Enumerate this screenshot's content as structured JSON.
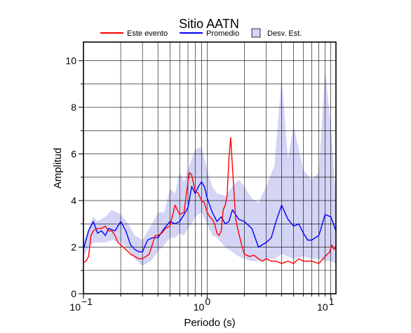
{
  "chart_data": {
    "type": "line",
    "title": "Sitio AATN",
    "xlabel": "Periodo (s)",
    "ylabel": "Amplitud",
    "xscale": "log",
    "xlim": [
      0.1,
      11
    ],
    "ylim": [
      0,
      10.8
    ],
    "x_tick_labels": [
      {
        "value": 0.1,
        "base": "10",
        "exp": "−1"
      },
      {
        "value": 1,
        "base": "10",
        "exp": "0"
      },
      {
        "value": 10,
        "base": "10",
        "exp": "1"
      }
    ],
    "y_ticks": [
      0,
      2,
      4,
      6,
      8,
      10
    ],
    "y_tick_labels": [
      "0",
      "2",
      "4",
      "6",
      "8",
      "10"
    ],
    "grid": true,
    "legend_position": "top",
    "legend": [
      {
        "label": "Este evento",
        "color": "#ff0000",
        "kind": "line"
      },
      {
        "label": "Promedio",
        "color": "#0000ff",
        "kind": "line"
      },
      {
        "label": "Desv. Est.",
        "color": "#d4d4f5",
        "kind": "band"
      }
    ],
    "band": {
      "name": "Desv. Est.",
      "color": "#d4d4f5",
      "x": [
        0.1,
        0.11,
        0.12,
        0.13,
        0.15,
        0.17,
        0.2,
        0.23,
        0.26,
        0.3,
        0.35,
        0.4,
        0.45,
        0.5,
        0.55,
        0.6,
        0.65,
        0.7,
        0.75,
        0.8,
        0.9,
        1.0,
        1.1,
        1.2,
        1.4,
        1.6,
        1.8,
        2.0,
        2.3,
        2.6,
        3.0,
        3.5,
        4.0,
        4.5,
        5.0,
        6.0,
        7.0,
        8.0,
        9.0,
        10.0,
        11.0
      ],
      "upper": [
        2.2,
        2.8,
        3.3,
        3.1,
        3.3,
        3.6,
        3.4,
        3.0,
        2.5,
        2.3,
        2.9,
        3.5,
        3.5,
        4.5,
        4.3,
        5.2,
        4.8,
        5.3,
        5.8,
        6.2,
        6.3,
        5.3,
        4.6,
        4.3,
        4.2,
        4.6,
        4.9,
        4.6,
        4.1,
        3.9,
        4.6,
        5.5,
        9.3,
        5.8,
        7.2,
        5.3,
        4.9,
        5.2,
        9.6,
        7.2,
        4.1
      ],
      "lower": [
        1.6,
        2.0,
        2.2,
        2.2,
        2.2,
        2.3,
        2.2,
        1.9,
        1.5,
        1.2,
        1.4,
        1.8,
        2.1,
        2.4,
        2.4,
        2.6,
        2.5,
        2.8,
        3.0,
        3.3,
        3.5,
        3.0,
        2.5,
        2.4,
        2.0,
        1.8,
        1.6,
        1.5,
        1.4,
        1.4,
        1.5,
        1.5,
        1.7,
        1.6,
        1.5,
        1.6,
        1.5,
        1.5,
        1.4,
        1.4,
        1.3
      ]
    },
    "series": [
      {
        "name": "Este evento",
        "color": "#ff0000",
        "x": [
          0.1,
          0.105,
          0.11,
          0.115,
          0.12,
          0.13,
          0.14,
          0.15,
          0.16,
          0.17,
          0.18,
          0.19,
          0.2,
          0.22,
          0.24,
          0.26,
          0.28,
          0.3,
          0.32,
          0.34,
          0.36,
          0.38,
          0.4,
          0.43,
          0.46,
          0.5,
          0.55,
          0.6,
          0.65,
          0.7,
          0.72,
          0.75,
          0.8,
          0.85,
          0.9,
          0.95,
          1.0,
          1.05,
          1.1,
          1.15,
          1.2,
          1.25,
          1.3,
          1.35,
          1.4,
          1.45,
          1.5,
          1.55,
          1.6,
          1.7,
          1.8,
          1.9,
          2.0,
          2.2,
          2.4,
          2.6,
          2.8,
          3.0,
          3.3,
          3.6,
          4.0,
          4.5,
          5.0,
          5.5,
          6.0,
          7.0,
          8.0,
          9.0,
          9.8,
          10.2,
          10.6,
          11.0
        ],
        "y": [
          1.35,
          1.4,
          1.6,
          2.5,
          2.7,
          2.8,
          2.8,
          2.9,
          2.7,
          2.7,
          2.5,
          2.2,
          2.1,
          1.9,
          1.7,
          1.6,
          1.5,
          1.5,
          1.6,
          1.7,
          2.1,
          2.5,
          2.5,
          2.6,
          2.8,
          2.9,
          3.8,
          3.4,
          3.5,
          4.8,
          5.2,
          5.1,
          4.4,
          4.3,
          4.0,
          3.9,
          3.5,
          3.3,
          3.2,
          3.0,
          2.6,
          2.5,
          2.7,
          3.6,
          3.8,
          4.2,
          5.8,
          6.7,
          5.5,
          3.2,
          2.6,
          2.1,
          1.7,
          1.6,
          1.65,
          1.5,
          1.4,
          1.5,
          1.4,
          1.4,
          1.3,
          1.4,
          1.3,
          1.5,
          1.4,
          1.4,
          1.3,
          1.6,
          1.8,
          2.1,
          1.9,
          2.0
        ]
      },
      {
        "name": "Promedio",
        "color": "#0000ff",
        "x": [
          0.1,
          0.11,
          0.12,
          0.13,
          0.14,
          0.15,
          0.16,
          0.18,
          0.2,
          0.22,
          0.24,
          0.26,
          0.28,
          0.3,
          0.33,
          0.36,
          0.4,
          0.45,
          0.5,
          0.55,
          0.6,
          0.65,
          0.7,
          0.75,
          0.8,
          0.85,
          0.9,
          0.95,
          1.0,
          1.1,
          1.2,
          1.3,
          1.4,
          1.5,
          1.6,
          1.8,
          2.0,
          2.3,
          2.6,
          3.0,
          3.3,
          3.6,
          4.0,
          4.5,
          5.0,
          5.5,
          6.0,
          6.5,
          7.0,
          8.0,
          9.0,
          10.0,
          11.0
        ],
        "y": [
          1.9,
          2.7,
          3.1,
          2.6,
          2.7,
          2.5,
          2.8,
          2.7,
          3.1,
          2.7,
          2.1,
          1.9,
          1.8,
          1.8,
          2.3,
          2.4,
          2.4,
          2.8,
          3.1,
          3.0,
          3.1,
          3.4,
          3.7,
          4.6,
          4.3,
          4.6,
          4.8,
          4.6,
          4.1,
          3.5,
          3.1,
          3.3,
          3.0,
          3.1,
          3.6,
          3.2,
          3.1,
          2.8,
          2.0,
          2.2,
          2.4,
          3.1,
          3.8,
          3.2,
          2.9,
          3.0,
          2.6,
          2.3,
          2.3,
          2.5,
          3.4,
          3.3,
          2.7
        ]
      }
    ]
  }
}
